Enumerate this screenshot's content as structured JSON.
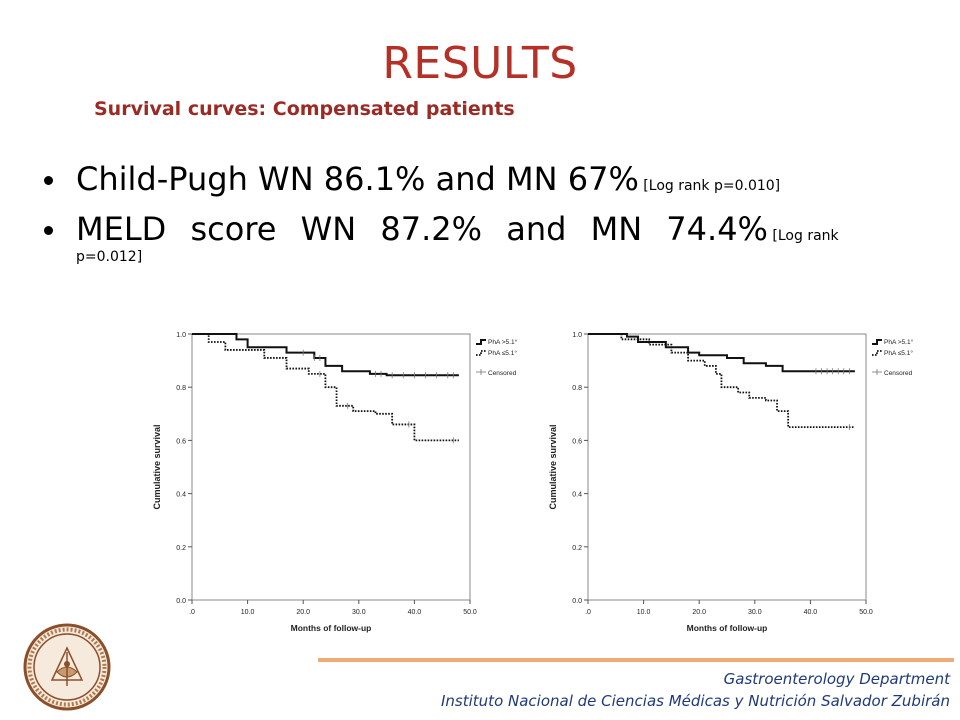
{
  "slide": {
    "title": "RESULTS",
    "subtitle": "Survival curves: Compensated patients",
    "bullets": [
      {
        "main": "Child-Pugh WN 86.1% and MN 67%",
        "note": "[Log rank p=0.010]"
      },
      {
        "main": "MELD score WN 87.2% and MN 74.4%",
        "note": "[Log rank p=0.012]"
      }
    ],
    "footer": {
      "department": "Gastroenterology Department",
      "institute": "Instituto Nacional de Ciencias Médicas y Nutrición Salvador Zubirán"
    }
  },
  "chart_data": [
    {
      "type": "line",
      "xlabel": "Months of follow-up",
      "ylabel": "Cumulative survival",
      "xlim": [
        0,
        50
      ],
      "ylim": [
        0,
        1
      ],
      "xticks": [
        ".0",
        "10.0",
        "20.0",
        "30.0",
        "40.0",
        "50.0"
      ],
      "yticks": [
        "0.0",
        "0.2",
        "0.4",
        "0.6",
        "0.8",
        "1.0"
      ],
      "legend": [
        "PhA >5.1°",
        "PhA ≤5.1°",
        "Censored"
      ],
      "legend_position": "top-right",
      "series": [
        {
          "name": "PhA >5.1°",
          "style": "solid",
          "steps": [
            [
              0,
              1.0
            ],
            [
              8,
              0.98
            ],
            [
              10,
              0.95
            ],
            [
              17,
              0.93
            ],
            [
              22,
              0.91
            ],
            [
              24,
              0.88
            ],
            [
              27,
              0.86
            ],
            [
              32,
              0.85
            ],
            [
              35,
              0.845
            ],
            [
              48,
              0.845
            ]
          ],
          "censored": [
            20,
            22,
            23,
            33,
            34,
            36,
            38,
            40,
            42,
            44,
            46,
            47
          ]
        },
        {
          "name": "PhA ≤5.1°",
          "style": "dotted",
          "steps": [
            [
              0,
              1.0
            ],
            [
              3,
              0.97
            ],
            [
              6,
              0.94
            ],
            [
              13,
              0.91
            ],
            [
              17,
              0.87
            ],
            [
              21,
              0.85
            ],
            [
              24,
              0.8
            ],
            [
              26,
              0.73
            ],
            [
              29,
              0.71
            ],
            [
              33,
              0.7
            ],
            [
              36,
              0.66
            ],
            [
              40,
              0.6
            ],
            [
              48,
              0.6
            ]
          ],
          "censored": [
            23,
            28,
            39,
            47
          ]
        }
      ]
    },
    {
      "type": "line",
      "xlabel": "Months of follow-up",
      "ylabel": "Cumulative survival",
      "xlim": [
        0,
        50
      ],
      "ylim": [
        0,
        1
      ],
      "xticks": [
        ".0",
        "10.0",
        "20.0",
        "30.0",
        "40.0",
        "50.0"
      ],
      "yticks": [
        "0.0",
        "0.2",
        "0.4",
        "0.6",
        "0.8",
        "1.0"
      ],
      "legend": [
        "PhA >5.1°",
        "PhA ≤5.1°",
        "Censored"
      ],
      "legend_position": "top-right",
      "series": [
        {
          "name": "PhA >5.1°",
          "style": "solid",
          "steps": [
            [
              0,
              1.0
            ],
            [
              7,
              0.99
            ],
            [
              9,
              0.97
            ],
            [
              14,
              0.95
            ],
            [
              18,
              0.93
            ],
            [
              20,
              0.92
            ],
            [
              25,
              0.91
            ],
            [
              28,
              0.89
            ],
            [
              32,
              0.88
            ],
            [
              35,
              0.86
            ],
            [
              48,
              0.86
            ]
          ],
          "censored": [
            41,
            42,
            43,
            44,
            45,
            46,
            47
          ]
        },
        {
          "name": "PhA ≤5.1°",
          "style": "dotted",
          "steps": [
            [
              0,
              1.0
            ],
            [
              6,
              0.98
            ],
            [
              11,
              0.96
            ],
            [
              15,
              0.93
            ],
            [
              18,
              0.9
            ],
            [
              21,
              0.88
            ],
            [
              23,
              0.85
            ],
            [
              24,
              0.8
            ],
            [
              27,
              0.78
            ],
            [
              29,
              0.76
            ],
            [
              32,
              0.75
            ],
            [
              34,
              0.71
            ],
            [
              36,
              0.65
            ],
            [
              48,
              0.65
            ]
          ],
          "censored": [
            47
          ]
        }
      ]
    }
  ]
}
